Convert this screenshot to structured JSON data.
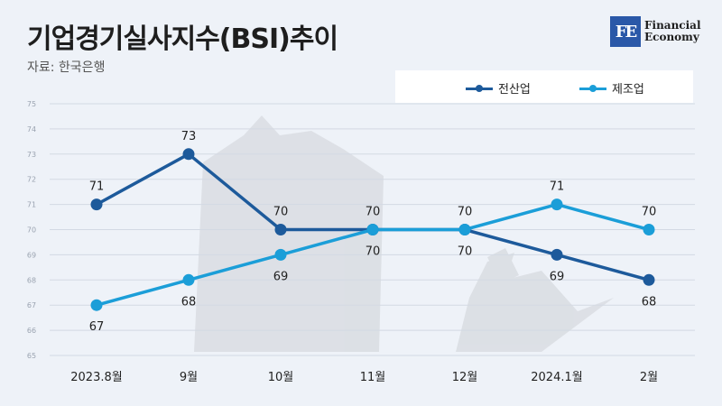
{
  "header": {
    "title": "기업경기실사지수(BSI)추이",
    "source": "자료: 한국은행"
  },
  "logo": {
    "mark": "FE",
    "line1": "Financial",
    "line2": "Economy"
  },
  "colors": {
    "all_industry": "#1d5a9b",
    "manufacturing": "#1b9ed8",
    "grid": "#d3d9e3",
    "background": "#eef2f8"
  },
  "chart_data": {
    "type": "line",
    "title": "기업경기실사지수(BSI)추이",
    "categories": [
      "2023.8월",
      "9월",
      "10월",
      "11월",
      "12월",
      "2024.1월",
      "2월"
    ],
    "series": [
      {
        "name": "전산업",
        "values": [
          71,
          73,
          70,
          70,
          70,
          69,
          68
        ]
      },
      {
        "name": "제조업",
        "values": [
          67,
          68,
          69,
          70,
          70,
          71,
          70
        ]
      }
    ],
    "y_ticks": [
      65,
      66,
      67,
      68,
      69,
      70,
      71,
      72,
      73,
      74,
      75
    ],
    "ylim": [
      65,
      75
    ],
    "xlabel": "",
    "ylabel": "",
    "grid": true,
    "legend": "top-right"
  }
}
